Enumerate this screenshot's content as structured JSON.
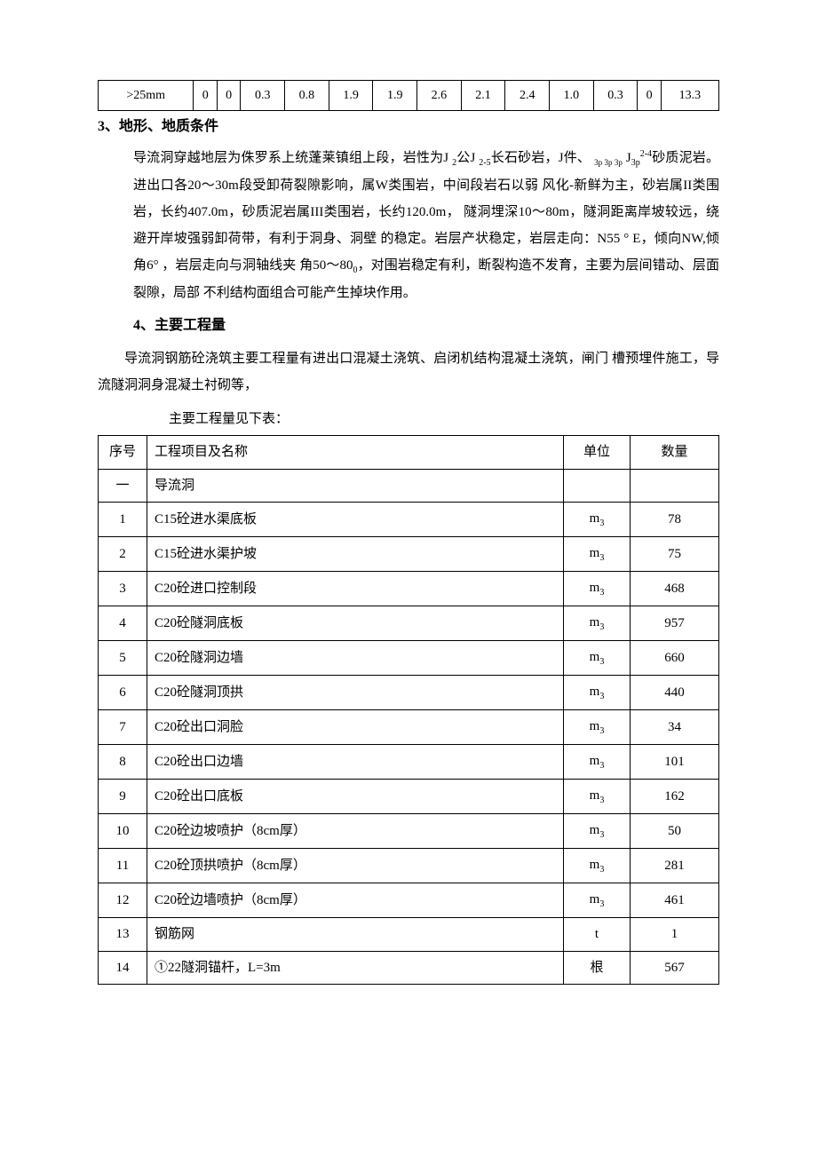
{
  "table1": {
    "cells": [
      ">25mm",
      "0",
      "0",
      "0.3",
      "0.8",
      "1.9",
      "1.9",
      "2.6",
      "2.1",
      "2.4",
      "1.0",
      "0.3",
      "0",
      "13.3"
    ],
    "border_color": "#000000",
    "font_size": 14
  },
  "section3_title": "3、地形、地质条件",
  "section3_para": "导流洞穿越地层为侏罗系上统蓬莱镇组上段，岩性为J ₂公J ₂₋₅长石砂岩，J件、 ₃p ₃p ₃p J₃p²⁻⁴砂质泥岩。进出口各20〜30m段受卸荷裂隙影响，属W类围岩，中间段岩石以弱 风化-新鲜为主，砂岩属II类围岩，长约407.0m，砂质泥岩属III类围岩，长约120.0m， 隧洞埋深10〜80m，隧洞距离岸坡较远，绕避开岸坡强弱卸荷带，有利于洞身、洞壁 的稳定。岩层产状稳定，岩层走向：N55 ° E，倾向NW,倾角6° ，岩层走向与洞轴线夹 角50〜80₀，对围岩稳定有利，断裂构造不发育，主要为层间错动、层面裂隙，局部   不利结构面组合可能产生掉块作用。",
  "section4_title": "4、主要工程量",
  "section4_para": "导流洞钢筋砼浇筑主要工程量有进出口混凝土浇筑、启闭机结构混凝土浇筑，闸门 槽预埋件施工，导流隧洞洞身混凝土衬砌等，",
  "table2_caption": "主要工程量见下表：",
  "table2": {
    "headers": [
      "序号",
      "工程项目及名称",
      "单位",
      "数量"
    ],
    "unit_m3": "m",
    "rows": [
      {
        "seq": "一",
        "name": "导流洞",
        "unit": "",
        "qty": ""
      },
      {
        "seq": "1",
        "name": "C15砼进水渠底板",
        "unit": "m3",
        "qty": "78"
      },
      {
        "seq": "2",
        "name": "C15砼进水渠护坡",
        "unit": "m3",
        "qty": "75"
      },
      {
        "seq": "3",
        "name": "C20砼进口控制段",
        "unit": "m3",
        "qty": "468"
      },
      {
        "seq": "4",
        "name": "C20砼隧洞底板",
        "unit": "m3",
        "qty": "957"
      },
      {
        "seq": "5",
        "name": "C20砼隧洞边墙",
        "unit": "m3",
        "qty": "660"
      },
      {
        "seq": "6",
        "name": "C20砼隧洞顶拱",
        "unit": "m3",
        "qty": "440"
      },
      {
        "seq": "7",
        "name": "C20砼出口洞脸",
        "unit": "m3",
        "qty": "34"
      },
      {
        "seq": "8",
        "name": "C20砼出口边墙",
        "unit": "m3",
        "qty": "101"
      },
      {
        "seq": "9",
        "name": "C20砼出口底板",
        "unit": "m3",
        "qty": "162"
      },
      {
        "seq": "10",
        "name": "C20砼边坡喷护（8cm厚）",
        "unit": "m3",
        "qty": "50"
      },
      {
        "seq": "11",
        "name": "C20砼顶拱喷护（8cm厚）",
        "unit": "m3",
        "qty": "281"
      },
      {
        "seq": "12",
        "name": "C20砼边墙喷护（8cm厚）",
        "unit": "m3",
        "qty": "461"
      },
      {
        "seq": "13",
        "name": "钢筋网",
        "unit": "t",
        "qty": "1"
      },
      {
        "seq": "14",
        "name": "①22隧洞锚杆，L=3m",
        "unit": "根",
        "qty": "567"
      }
    ],
    "border_color": "#000000"
  },
  "colors": {
    "background": "#ffffff",
    "text": "#000000",
    "border": "#000000"
  }
}
